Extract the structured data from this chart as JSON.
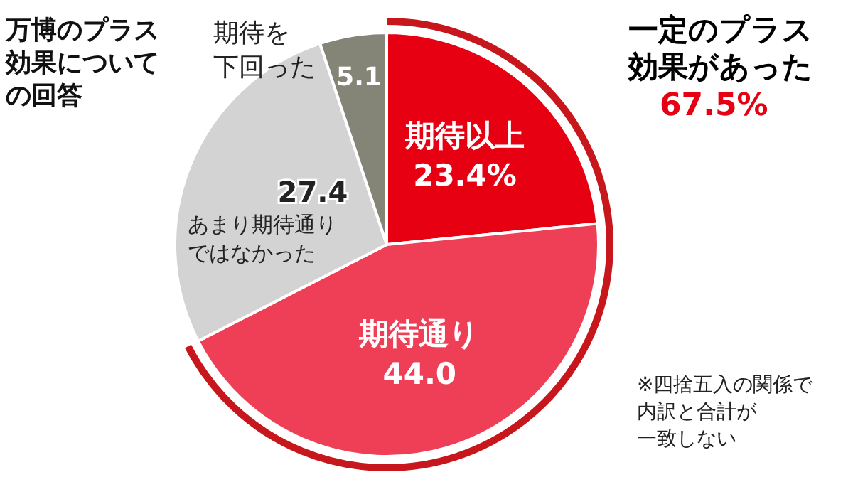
{
  "chart_data": {
    "type": "pie",
    "title": "万博のプラス効果についての回答",
    "categories": [
      "期待以上",
      "期待通り",
      "あまり期待通りではなかった",
      "期待を下回った"
    ],
    "values": [
      23.4,
      44.0,
      27.4,
      5.1
    ],
    "value_labels": [
      "23.4%",
      "44.0",
      "27.4",
      "5.1"
    ],
    "colors": [
      "#e60012",
      "#ee3f57",
      "#d3d3d3",
      "#858577"
    ],
    "annotations": [
      "一定のプラス効果があった",
      "67.5%",
      "※四捨五入の関係で内訳と合計が一致しない"
    ],
    "legend": false
  }
}
